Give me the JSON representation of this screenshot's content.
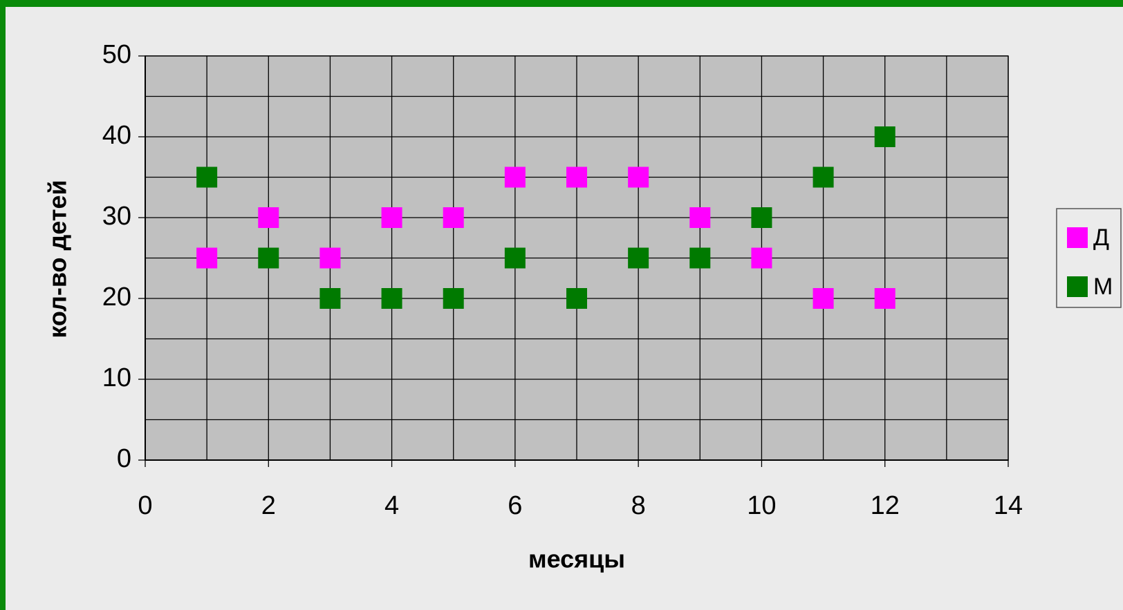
{
  "chart_data": {
    "type": "scatter",
    "xlabel": "месяцы",
    "ylabel": "кол-во детей",
    "series": [
      {
        "name": "Д",
        "color": "#ff00ff",
        "x": [
          1,
          2,
          3,
          4,
          5,
          6,
          7,
          8,
          9,
          10,
          11,
          12
        ],
        "values": [
          25,
          30,
          25,
          30,
          30,
          35,
          35,
          35,
          30,
          25,
          20,
          20
        ]
      },
      {
        "name": "М",
        "color": "#007a00",
        "x": [
          1,
          2,
          3,
          4,
          5,
          6,
          7,
          8,
          9,
          10,
          11,
          12
        ],
        "values": [
          35,
          25,
          20,
          20,
          20,
          25,
          20,
          25,
          25,
          30,
          35,
          40
        ]
      }
    ],
    "xlim": [
      0,
      14
    ],
    "xticks": [
      0,
      2,
      4,
      6,
      8,
      10,
      12,
      14
    ],
    "ylim": [
      0,
      50
    ],
    "yticks": [
      0,
      10,
      20,
      30,
      40,
      50
    ],
    "minor_xticks": [
      1,
      3,
      5,
      7,
      9,
      11,
      13
    ],
    "minor_yticks": [
      5,
      15,
      25,
      35,
      45
    ],
    "grid": true,
    "legend": "right"
  }
}
